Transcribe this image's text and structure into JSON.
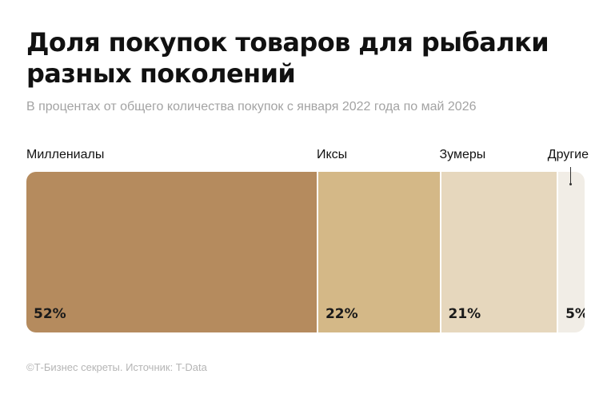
{
  "title": "Доля покупок товаров для рыбалки разных поколений",
  "subtitle": "В процентах от общего количества покупок с января 2022 года по май 2026",
  "footer": "©Т-Бизнес секреты. Источник: T-Data",
  "chart_data": {
    "type": "bar",
    "stacked": true,
    "orientation": "horizontal",
    "categories": [
      "Миллениалы",
      "Иксы",
      "Зумеры",
      "Другие"
    ],
    "values": [
      52,
      22,
      21,
      5
    ],
    "value_labels": [
      "52%",
      "22%",
      "21%",
      "5%"
    ],
    "unit": "%",
    "colors": [
      "#b58b5e",
      "#d4b887",
      "#e6d7bd",
      "#f1ede6"
    ],
    "grid": false,
    "legend": "none"
  }
}
